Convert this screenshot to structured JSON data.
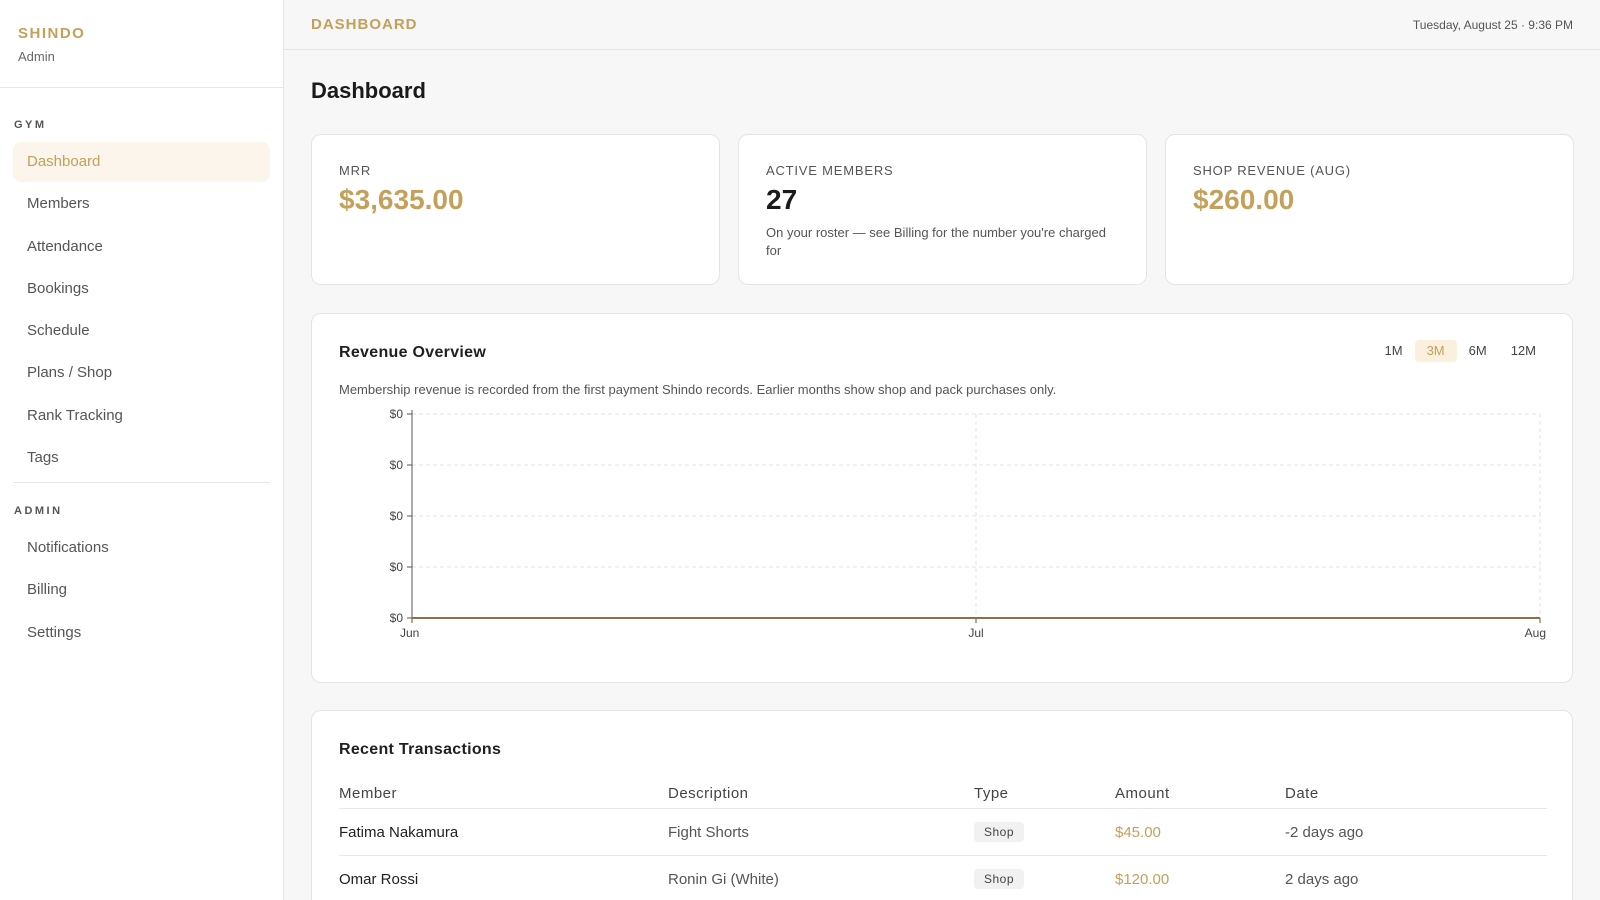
{
  "brand": {
    "name": "SHINDO",
    "role": "Admin"
  },
  "sidebar": {
    "gym_label": "GYM",
    "gym_items": [
      {
        "label": "Dashboard",
        "active": true
      },
      {
        "label": "Members"
      },
      {
        "label": "Attendance"
      },
      {
        "label": "Bookings"
      },
      {
        "label": "Schedule"
      },
      {
        "label": "Plans / Shop"
      },
      {
        "label": "Rank Tracking"
      },
      {
        "label": "Tags"
      }
    ],
    "admin_label": "ADMIN",
    "admin_items": [
      {
        "label": "Notifications"
      },
      {
        "label": "Billing"
      },
      {
        "label": "Settings"
      }
    ]
  },
  "topbar": {
    "title": "DASHBOARD",
    "datetime": "Tuesday, August 25 · 9:36 PM"
  },
  "page": {
    "title": "Dashboard"
  },
  "stats": {
    "mrr": {
      "label": "MRR",
      "value": "$3,635.00"
    },
    "active": {
      "label": "ACTIVE MEMBERS",
      "value": "27",
      "note": "On your roster — see Billing for the number you're charged for"
    },
    "shop": {
      "label": "SHOP REVENUE (AUG)",
      "value": "$260.00"
    }
  },
  "revenue": {
    "title": "Revenue Overview",
    "ranges": [
      "1M",
      "3M",
      "6M",
      "12M"
    ],
    "active_range": "3M",
    "description": "Membership revenue is recorded from the first payment Shindo records. Earlier months show shop and pack purchases only."
  },
  "chart_data": {
    "type": "line",
    "x": [
      "Jun",
      "Jul",
      "Aug"
    ],
    "series": [
      {
        "values": [
          0,
          0,
          0
        ]
      }
    ],
    "y_tick_labels": [
      "$0",
      "$0",
      "$0",
      "$0",
      "$0"
    ],
    "grid": true,
    "line_color": "#8a7248"
  },
  "transactions": {
    "title": "Recent Transactions",
    "columns": {
      "member": "Member",
      "description": "Description",
      "type": "Type",
      "amount": "Amount",
      "date": "Date"
    },
    "rows": [
      {
        "member": "Fatima Nakamura",
        "description": "Fight Shorts",
        "type": "Shop",
        "amount": "$45.00",
        "date": "-2 days ago"
      },
      {
        "member": "Omar Rossi",
        "description": "Ronin Gi (White)",
        "type": "Shop",
        "amount": "$120.00",
        "date": "2 days ago"
      }
    ]
  }
}
